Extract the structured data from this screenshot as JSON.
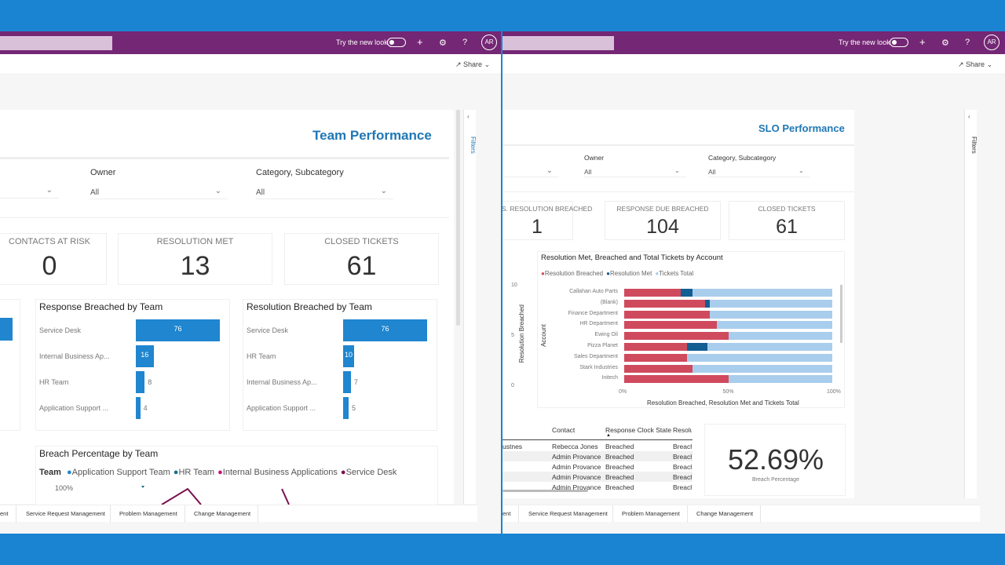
{
  "shell": {
    "try_new_look": "Try the new look",
    "plus": "+",
    "gear": "⚙",
    "help": "?",
    "avatar": "AR",
    "share": "Share"
  },
  "left": {
    "title": "Team Performance",
    "filters": {
      "owner_label": "Owner",
      "owner_value": "All",
      "category_label": "Category, Subcategory",
      "category_value": "All"
    },
    "cards": [
      {
        "label": "CONTACTS AT RISK",
        "value": "0"
      },
      {
        "label": "RESOLUTION MET",
        "value": "13"
      },
      {
        "label": "CLOSED TICKETS",
        "value": "61"
      }
    ],
    "filters_pane": "Filters",
    "line_chart": {
      "title": "Breach Percentage by Team",
      "legend_title": "Team",
      "legend": [
        "Application Support Team",
        "HR Team",
        "Internal Business Applications",
        "Service Desk"
      ],
      "legend_colors": [
        "#1f86cf",
        "#1a6e8c",
        "#c0157a",
        "#7a0f4f"
      ],
      "ytick": "100%"
    },
    "tabs": [
      "ent",
      "Service Request Management",
      "Problem Management",
      "Change Management"
    ]
  },
  "right": {
    "title": "SLO Performance",
    "filters": {
      "owner_label": "Owner",
      "owner_value": "All",
      "category_label": "Category, Subcategory",
      "category_value": "All"
    },
    "cards": [
      {
        "label": "S. RESOLUTION BREACHED",
        "value": "1"
      },
      {
        "label": "RESPONSE DUE BREACHED",
        "value": "104"
      },
      {
        "label": "CLOSED TICKETS",
        "value": "61"
      }
    ],
    "filters_pane": "Filters",
    "side_axis": {
      "label": "Resolution Breached",
      "ticks": [
        "10",
        "5",
        "0"
      ]
    },
    "table": {
      "headers": [
        "Contact",
        "Response Clock State",
        "Resolu"
      ],
      "rows": [
        [
          "ustnes",
          "Rebecca Jones",
          "Breached",
          "Breach"
        ],
        [
          "",
          "Admin Provance",
          "Breached",
          "Breach"
        ],
        [
          "",
          "Admin Provance",
          "Breached",
          "Breach"
        ],
        [
          "",
          "Admin Provance",
          "Breached",
          "Breach"
        ],
        [
          "",
          "Admin Provance",
          "Breached",
          "Breach"
        ]
      ]
    },
    "kpi": {
      "value": "52.69%",
      "label": "Breach Percentage"
    },
    "tabs": [
      "ent",
      "Service Request Management",
      "Problem Management",
      "Change Management"
    ]
  },
  "chart_data": [
    {
      "type": "bar",
      "orientation": "horizontal",
      "title": "Response Breached by Team",
      "categories": [
        "Service Desk",
        "Internal Business Ap...",
        "HR Team",
        "Application Support ..."
      ],
      "values": [
        76,
        16,
        8,
        4
      ],
      "color": "#1f86cf"
    },
    {
      "type": "bar",
      "orientation": "horizontal",
      "title": "Resolution Breached by Team",
      "categories": [
        "Service Desk",
        "HR Team",
        "Internal Business Ap...",
        "Application Support ..."
      ],
      "values": [
        76,
        10,
        7,
        5
      ],
      "color": "#1f86cf"
    },
    {
      "type": "bar",
      "orientation": "horizontal",
      "stacked": "100%",
      "title": "Resolution Met, Breached and Total Tickets by Account",
      "xlabel": "Resolution Breached, Resolution Met and Tickets Total",
      "ylabel": "Account",
      "xticks": [
        "0%",
        "50%",
        "100%"
      ],
      "legend": "top-left",
      "categories": [
        "Callahan Auto Parts",
        "(Blank)",
        "Finance Department",
        "HR Department",
        "Ewing Oil",
        "Pizza Planet",
        "Sales Department",
        "Stark Industries",
        "Initech"
      ],
      "series": [
        {
          "name": "Resolution Breached",
          "color": "#d04a5e",
          "values": [
            27,
            39,
            41,
            44.5,
            50,
            30,
            30,
            33,
            50
          ]
        },
        {
          "name": "Resolution Met",
          "color": "#135e93",
          "values": [
            6,
            2,
            0,
            0,
            0,
            10,
            0,
            0,
            0
          ]
        },
        {
          "name": "Tickets Total",
          "color": "#a9cdec",
          "values": [
            67,
            59,
            59,
            55.5,
            50,
            60,
            70,
            67,
            50
          ]
        }
      ]
    }
  ]
}
